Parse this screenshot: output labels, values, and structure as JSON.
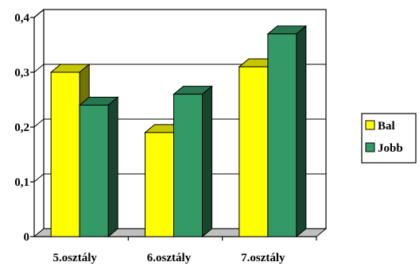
{
  "chart_data": {
    "type": "bar",
    "categories": [
      "5.osztály",
      "6.osztály",
      "7.osztály"
    ],
    "series": [
      {
        "name": "Bal",
        "values": [
          0.3,
          0.19,
          0.31
        ],
        "color": "#ffff00"
      },
      {
        "name": "Jobb",
        "values": [
          0.24,
          0.26,
          0.37
        ],
        "color": "#339966"
      }
    ],
    "yticks": [
      "0",
      "0,1",
      "0,2",
      "0,3",
      "0,4"
    ],
    "ylim": [
      0,
      0.4
    ],
    "grid": true,
    "three_d": true,
    "legend_position": "right",
    "title": "",
    "xlabel": "",
    "ylabel": ""
  }
}
